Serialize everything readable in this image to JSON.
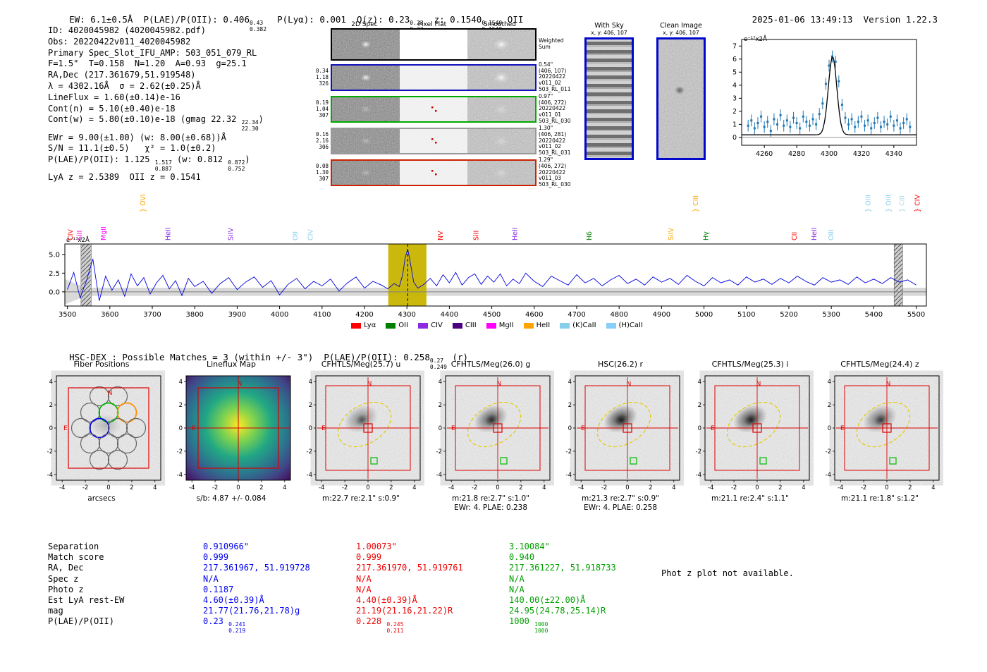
{
  "header": {
    "seg1": "EW: 6.1±0.5Å  P(LAE)/P(OII): 0.406",
    "stack1_hi": "0.43",
    "stack1_lo": "0.382",
    "seg2": "  P(Lyα): 0.001  Q(z): 0.23",
    "stack2_hi": "0.23",
    "stack2_lo": "0.23",
    "seg3": "  z: 0.1540",
    "stack3_hi": "0.1540",
    "stack3_lo": "0.1540",
    "seg4": " OII",
    "datetime": "2025-01-06 13:49:13",
    "version": "Version 1.22.3"
  },
  "info": {
    "l1": "ID: 4020045982 (4020045982.pdf)",
    "l2": "Obs: 20220422v011_4020045982",
    "l3": "Primary Spec_Slot_IFU_AMP: 503_051_079_RL",
    "l4": "F=1.5\"  T=0.158  N=1.20  A=0.93  g=25.1",
    "l5": "RA,Dec (217.361679,51.919548)",
    "l6": "λ = 4302.16Å  σ = 2.62(±0.25)Å",
    "l7": "LineFlux = 1.60(±0.14)e-16",
    "l8": "Cont(n) = 5.10(±0.40)e-18",
    "l9_pre": "Cont(w) = 5.80(±0.10)e-18 (gmag 22.32 ",
    "l9_hi": "22.34",
    "l9_lo": "22.30",
    "l9_post": ")",
    "l10": "EWr = 9.00(±1.00) (w: 8.00(±0.68))Å",
    "l11": "S/N = 11.1(±0.5)   χ² = 1.0(±0.2)",
    "l12_pre": "P(LAE)/P(OII): 1.125 ",
    "l12_hi": "1.517",
    "l12_lo": "0.887",
    "l12_mid": " (w: 0.812 ",
    "l12_hi2": "0.872",
    "l12_lo2": "0.752",
    "l12_post": ")",
    "l13": "LyA z = 2.5389  OII z = 0.1541"
  },
  "spec2d": {
    "col_headers": [
      "2D Spec",
      "Pixel Flat",
      "Smoothed"
    ],
    "rows": [
      {
        "border": "#000000",
        "left": [],
        "right": [
          "Weighted",
          "Sum"
        ],
        "kind": "strong"
      },
      {
        "border": "#1111bb",
        "left": [
          "0.34",
          "1.18",
          "326"
        ],
        "right": [
          "0.54\"",
          "(406, 107)",
          "20220422",
          "v011_02",
          "503_RL_011"
        ],
        "kind": "strong"
      },
      {
        "border": "#00aa00",
        "left": [
          "0.19",
          "1.04",
          "307"
        ],
        "right": [
          "0.97\"",
          "(406, 272)",
          "20220422",
          "v011_01",
          "503_RL_030"
        ],
        "kind": "faint"
      },
      {
        "border": "#999999",
        "left": [
          "0.16",
          "2.16",
          "306"
        ],
        "right": [
          "1.30\"",
          "(406, 281)",
          "20220422",
          "v011_02",
          "503_RL_031"
        ],
        "kind": "faint"
      },
      {
        "border": "#cc2200",
        "left": [
          "0.08",
          "1.30",
          "307"
        ],
        "right": [
          "1.29\"",
          "(406, 272)",
          "20220422",
          "v011_03",
          "503_RL_030"
        ],
        "kind": "faint"
      }
    ]
  },
  "fiber_images": {
    "with_sky_title": "With Sky",
    "with_sky_coords": "x, y: 406, 107",
    "clean_title": "Clean Image",
    "clean_coords": "x, y: 406, 107"
  },
  "hsc": {
    "pre": "HSC-DEX : Possible Matches = 3 (within +/- 3\")  P(LAE)/P(OII): 0.258",
    "hi": "0.27",
    "lo": "0.249",
    "post": " (r)"
  },
  "cutouts": {
    "axis_ticks": [
      -4,
      -2,
      0,
      2,
      4
    ],
    "compass": {
      "north": "N",
      "east": "E"
    },
    "panels": [
      {
        "type": "fiber",
        "title": "Fiber Positions",
        "caption": "arcsecs",
        "caption2": ""
      },
      {
        "type": "map",
        "title": "Lineflux Map",
        "caption": "s/b: 4.87 +/- 0.084",
        "caption2": ""
      },
      {
        "type": "image",
        "title": "CFHTLS/Meg(25.7) u",
        "caption": "m:22.7 re:2.1\" s:0.9\"",
        "caption2": ""
      },
      {
        "type": "image",
        "title": "CFHTLS/Meg(26.0) g",
        "caption": "m:21.8 re:2.7\" s:1.0\"",
        "caption2": "EWr: 4. PLAE: 0.238"
      },
      {
        "type": "image",
        "title": "HSC(26.2) r",
        "caption": "m:21.3 re:2.7\" s:0.9\"",
        "caption2": "EWr: 4. PLAE: 0.258"
      },
      {
        "type": "image",
        "title": "CFHTLS/Meg(25.3) i",
        "caption": "m:21.1 re:2.4\" s:1.1\"",
        "caption2": ""
      },
      {
        "type": "image",
        "title": "CFHTLS/Meg(24.4) z",
        "caption": "m:21.1 re:1.8\" s:1.2\"",
        "caption2": ""
      }
    ]
  },
  "matches": {
    "row_labels": [
      "Separation",
      "Match score",
      "RA, Dec",
      "Spec z",
      "Photo z",
      "Est LyA rest-EW",
      "mag",
      "P(LAE)/P(OII)"
    ],
    "columns": [
      {
        "color": "#0000ee",
        "separation": "0.910966\"",
        "score": "0.999",
        "radec": "217.361967, 51.919728",
        "specz": "N/A",
        "photoz": "0.1187",
        "rest_ew": "4.60(±0.39)Å",
        "mag": "21.77(21.76,21.78)g",
        "plae": "0.23",
        "plae_hi": "0.241",
        "plae_lo": "0.219"
      },
      {
        "color": "#ee0000",
        "separation": "1.00073\"",
        "score": "0.999",
        "radec": "217.361970, 51.919761",
        "specz": "N/A",
        "photoz": "N/A",
        "rest_ew": "4.40(±0.39)Å",
        "mag": "21.19(21.16,21.22)R",
        "plae": "0.228",
        "plae_hi": "0.245",
        "plae_lo": "0.211"
      },
      {
        "color": "#00a000",
        "separation": "3.10084\"",
        "score": "0.940",
        "radec": "217.361227, 51.918733",
        "specz": "N/A",
        "photoz": "N/A",
        "rest_ew": "140.00(±22.00)Å",
        "mag": "24.95(24.78,25.14)R",
        "plae": "1000",
        "plae_hi": "1000",
        "plae_lo": "1000"
      }
    ],
    "note": "Phot z plot not available."
  },
  "chart_data": [
    {
      "id": "zoom_spectrum",
      "type": "scatter",
      "title": "",
      "ylabel": "e⁻¹⁷x2Å",
      "xlim": [
        4246,
        4354
      ],
      "ylim": [
        -0.6,
        7.5
      ],
      "x_ticks": [
        4260,
        4280,
        4300,
        4320,
        4340
      ],
      "y_ticks": [
        0,
        1,
        2,
        3,
        4,
        5,
        6,
        7
      ],
      "x_start": 4250,
      "x_step": 2,
      "y": [
        0.9,
        1.3,
        0.7,
        1.1,
        1.6,
        0.8,
        1.2,
        0.5,
        1.4,
        1.0,
        1.7,
        0.9,
        1.3,
        0.8,
        1.5,
        1.1,
        0.7,
        1.6,
        1.2,
        0.9,
        1.4,
        1.0,
        1.8,
        2.6,
        4.1,
        5.5,
        6.2,
        5.8,
        4.3,
        2.5,
        1.5,
        1.0,
        1.4,
        0.8,
        1.2,
        1.6,
        0.9,
        1.3,
        0.7,
        1.1,
        1.5,
        0.8,
        1.2,
        1.0,
        1.6,
        0.9,
        1.3,
        0.7,
        1.1,
        1.4,
        0.8
      ],
      "yerr": 0.45,
      "point_color": "#1f77b4",
      "fit": {
        "shape": "gaussian",
        "mu": 4302.16,
        "sigma": 2.62,
        "amplitude": 6.0,
        "baseline": 0.2,
        "color": "#000000"
      }
    },
    {
      "id": "full_spectrum",
      "type": "line",
      "ylabel": "e⁻¹⁷x2Å",
      "xlim": [
        3494,
        5524
      ],
      "ylim": [
        -1.9,
        6.4
      ],
      "x_ticks": [
        3500,
        3600,
        3700,
        3800,
        3900,
        4000,
        4100,
        4200,
        4300,
        4400,
        4500,
        4600,
        4700,
        4800,
        4900,
        5000,
        5100,
        5200,
        5300,
        5400,
        5500
      ],
      "y_ticks": [
        0,
        2.5,
        5
      ],
      "y_tick_labels": [
        "0.0",
        "2.5",
        "5.0"
      ],
      "line_color": "#0000dd",
      "error_band": 0.55,
      "highlight_band": {
        "x0": 4256,
        "x1": 4346,
        "color": "#c8b400"
      },
      "marker_wavelength": 4302.16,
      "masked_bands": [
        [
          3532,
          3556
        ],
        [
          5448,
          5468
        ]
      ],
      "x": [
        3500,
        3515,
        3530,
        3545,
        3560,
        3575,
        3590,
        3605,
        3620,
        3635,
        3650,
        3665,
        3680,
        3695,
        3710,
        3725,
        3740,
        3755,
        3770,
        3785,
        3800,
        3820,
        3840,
        3860,
        3880,
        3900,
        3920,
        3940,
        3960,
        3980,
        4000,
        4020,
        4040,
        4060,
        4080,
        4100,
        4120,
        4140,
        4160,
        4180,
        4200,
        4220,
        4240,
        4255,
        4270,
        4282,
        4290,
        4296,
        4302,
        4308,
        4316,
        4326,
        4340,
        4355,
        4370,
        4385,
        4400,
        4415,
        4430,
        4445,
        4460,
        4475,
        4490,
        4505,
        4520,
        4535,
        4550,
        4565,
        4580,
        4600,
        4620,
        4640,
        4660,
        4680,
        4700,
        4720,
        4740,
        4760,
        4780,
        4800,
        4820,
        4840,
        4860,
        4880,
        4900,
        4920,
        4940,
        4960,
        4980,
        5000,
        5020,
        5040,
        5060,
        5080,
        5100,
        5120,
        5140,
        5160,
        5180,
        5200,
        5220,
        5240,
        5260,
        5280,
        5300,
        5320,
        5340,
        5360,
        5380,
        5400,
        5420,
        5440,
        5460,
        5480,
        5500
      ],
      "y": [
        0.3,
        2.6,
        -0.8,
        1.5,
        4.4,
        -1.2,
        2.1,
        0.2,
        1.6,
        -0.6,
        2.4,
        0.8,
        1.9,
        -0.3,
        1.2,
        2.2,
        0.4,
        1.5,
        -0.5,
        1.8,
        0.7,
        1.4,
        -0.2,
        1.1,
        1.9,
        0.3,
        1.3,
        2.0,
        0.6,
        1.5,
        -0.4,
        1.0,
        1.8,
        0.4,
        1.4,
        0.8,
        1.7,
        0.1,
        1.2,
        2.0,
        0.5,
        1.4,
        0.9,
        0.4,
        1.1,
        0.7,
        2.3,
        4.6,
        5.7,
        3.9,
        1.3,
        0.5,
        1.0,
        1.8,
        0.8,
        2.3,
        1.2,
        2.6,
        0.9,
        1.9,
        2.4,
        1.0,
        2.1,
        1.3,
        2.4,
        0.8,
        1.7,
        1.1,
        2.5,
        1.4,
        0.7,
        2.1,
        1.5,
        0.9,
        2.3,
        1.2,
        1.8,
        0.8,
        1.6,
        2.2,
        1.1,
        1.7,
        0.9,
        2.0,
        1.3,
        1.8,
        1.0,
        2.2,
        1.4,
        0.8,
        1.9,
        1.2,
        1.6,
        0.9,
        2.0,
        1.3,
        1.7,
        1.0,
        1.8,
        1.2,
        2.1,
        1.4,
        0.9,
        1.9,
        1.3,
        1.6,
        1.0,
        2.0,
        1.2,
        1.7,
        1.1,
        1.9,
        1.3,
        1.6,
        0.9
      ],
      "emission_lines": [
        {
          "label": "CIV",
          "wl": 3512,
          "color": "#ff0000",
          "tier": 0,
          "brace": false
        },
        {
          "label": "SiII",
          "wl": 3534,
          "color": "#ff00ff",
          "tier": 0,
          "brace": false
        },
        {
          "label": "MgII",
          "wl": 3590,
          "color": "#ff00ff",
          "tier": 0,
          "brace": false
        },
        {
          "label": "OVI",
          "wl": 3683,
          "color": "#ffa500",
          "tier": 1,
          "brace": true
        },
        {
          "label": "HeII",
          "wl": 3742,
          "color": "#8a2be2",
          "tier": 0,
          "brace": false
        },
        {
          "label": "SiIV",
          "wl": 3890,
          "color": "#8a2be2",
          "tier": 0,
          "brace": false
        },
        {
          "label": "OII",
          "wl": 4042,
          "color": "#87ceeb",
          "tier": 0,
          "brace": false
        },
        {
          "label": "CIV",
          "wl": 4078,
          "color": "#87ceeb",
          "tier": 0,
          "brace": false
        },
        {
          "label": "NV",
          "wl": 4384,
          "color": "#ff0000",
          "tier": 0,
          "brace": false
        },
        {
          "label": "SiII",
          "wl": 4468,
          "color": "#ff0000",
          "tier": 0,
          "brace": false
        },
        {
          "label": "HeII",
          "wl": 4560,
          "color": "#8a2be2",
          "tier": 0,
          "brace": false
        },
        {
          "label": "Hδ",
          "wl": 4735,
          "color": "#008000",
          "tier": 0,
          "brace": false
        },
        {
          "label": "SiIV",
          "wl": 4928,
          "color": "#ffa500",
          "tier": 0,
          "brace": false
        },
        {
          "label": "CIII",
          "wl": 4986,
          "color": "#ffa500",
          "tier": 1,
          "brace": true
        },
        {
          "label": "Hγ",
          "wl": 5010,
          "color": "#008000",
          "tier": 0,
          "brace": false
        },
        {
          "label": "CII",
          "wl": 5218,
          "color": "#ff0000",
          "tier": 0,
          "brace": false
        },
        {
          "label": "HeII",
          "wl": 5265,
          "color": "#8a2be2",
          "tier": 0,
          "brace": false
        },
        {
          "label": "OIII",
          "wl": 5305,
          "color": "#87ceeb",
          "tier": 0,
          "brace": false
        },
        {
          "label": "OIII",
          "wl": 5392,
          "color": "#87ceeb",
          "tier": 1,
          "brace": true
        },
        {
          "label": "OIII",
          "wl": 5440,
          "color": "#87ceeb",
          "tier": 1,
          "brace": true
        },
        {
          "label": "CIII",
          "wl": 5472,
          "color": "#add8e6",
          "tier": 1,
          "brace": true
        },
        {
          "label": "CIV",
          "wl": 5508,
          "color": "#ff0000",
          "tier": 1,
          "brace": true
        }
      ],
      "legend": [
        {
          "label": "Lyα",
          "color": "#ff0000"
        },
        {
          "label": "OII",
          "color": "#008000"
        },
        {
          "label": "CIV",
          "color": "#8a2be2"
        },
        {
          "label": "CIII",
          "color": "#4b0082"
        },
        {
          "label": "MgII",
          "color": "#ff00ff"
        },
        {
          "label": "HeII",
          "color": "#ffa500"
        },
        {
          "label": "(K)CaII",
          "color": "#87ceeb"
        },
        {
          "label": "(H)CaII",
          "color": "#87cefa"
        }
      ]
    }
  ]
}
